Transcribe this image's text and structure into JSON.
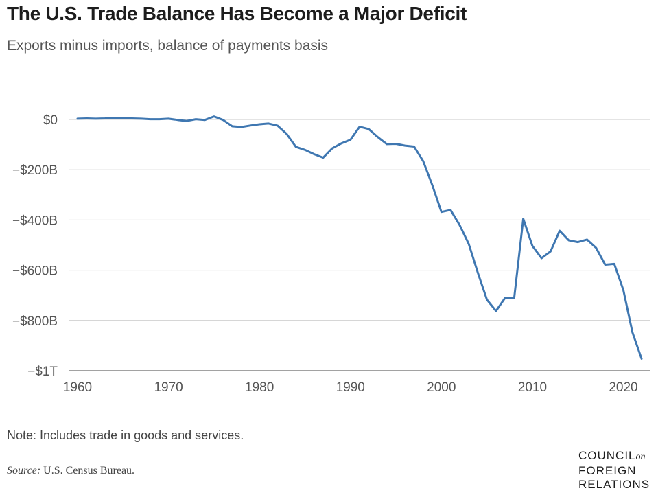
{
  "header": {
    "title": "The U.S. Trade Balance Has Become a Major Deficit",
    "subtitle": "Exports minus imports, balance of payments basis"
  },
  "footer": {
    "note": "Note: Includes trade in goods and services.",
    "source_label": "Source:",
    "source_text": "U.S. Census Bureau.",
    "logo": {
      "line1": "COUNCIL",
      "line1_suffix": "on",
      "line2": "FOREIGN",
      "line3": "RELATIONS"
    }
  },
  "colors": {
    "series": "#3f77b1",
    "grid": "#c8c8c8",
    "text": "#555555"
  },
  "chart_data": {
    "type": "line",
    "title": "The U.S. Trade Balance Has Become a Major Deficit",
    "subtitle": "Exports minus imports, balance of payments basis",
    "xlabel": "",
    "ylabel": "",
    "xlim": [
      1960,
      2022
    ],
    "ylim": [
      -1000,
      0
    ],
    "grid": true,
    "legend": "none",
    "x_ticks": [
      1960,
      1970,
      1980,
      1990,
      2000,
      2010,
      2020
    ],
    "x_tick_labels": [
      "1960",
      "1970",
      "1980",
      "1990",
      "2000",
      "2010",
      "2020"
    ],
    "y_ticks": [
      0,
      -200,
      -400,
      -600,
      -800,
      -1000
    ],
    "y_tick_labels": [
      "$0",
      "−$200B",
      "−$400B",
      "−$600B",
      "−$800B",
      "−$1T"
    ],
    "units": "billions of US dollars",
    "series": [
      {
        "x": [
          1960,
          1961,
          1962,
          1963,
          1964,
          1965,
          1966,
          1967,
          1968,
          1969,
          1970,
          1971,
          1972,
          1973,
          1974,
          1975,
          1976,
          1977,
          1978,
          1979,
          1980,
          1981,
          1982,
          1983,
          1984,
          1985,
          1986,
          1987,
          1988,
          1989,
          1990,
          1991,
          1992,
          1993,
          1994,
          1995,
          1996,
          1997,
          1998,
          1999,
          2000,
          2001,
          2002,
          2003,
          2004,
          2005,
          2006,
          2007,
          2008,
          2009,
          2010,
          2011,
          2012,
          2013,
          2014,
          2015,
          2016,
          2017,
          2018,
          2019,
          2020,
          2021,
          2022
        ],
        "values": [
          3,
          4,
          3,
          4,
          6,
          5,
          4,
          3,
          1,
          1,
          3,
          -2,
          -6,
          1,
          -2,
          12,
          -2,
          -27,
          -30,
          -24,
          -19,
          -16,
          -25,
          -58,
          -109,
          -121,
          -138,
          -152,
          -115,
          -95,
          -81,
          -29,
          -38,
          -70,
          -98,
          -97,
          -104,
          -108,
          -166,
          -262,
          -368,
          -360,
          -420,
          -495,
          -610,
          -717,
          -762,
          -710,
          -710,
          -395,
          -503,
          -552,
          -525,
          -443,
          -481,
          -488,
          -478,
          -511,
          -578,
          -575,
          -679,
          -847,
          -952
        ]
      }
    ]
  }
}
